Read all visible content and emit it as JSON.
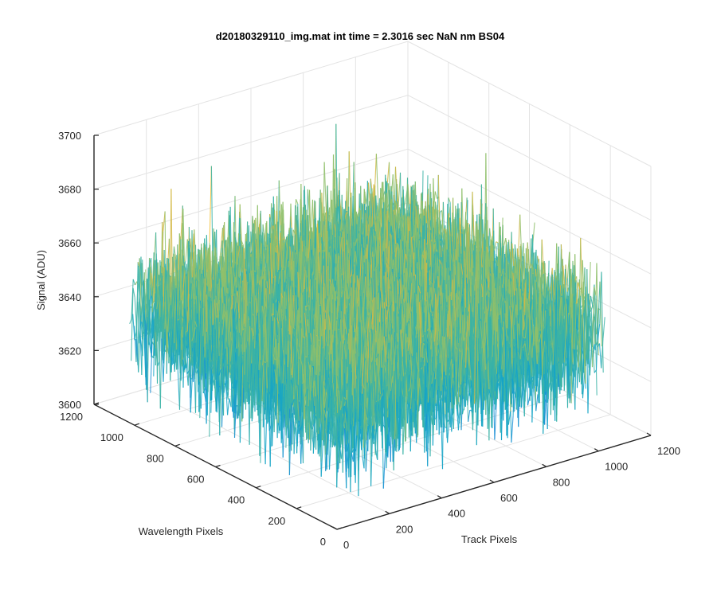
{
  "chart_data": {
    "type": "surface-3d",
    "title": "d20180329110_img.mat int time = 2.3016 sec  NaN nm BS04",
    "xlabel": "Track Pixels",
    "ylabel": "Wavelength Pixels",
    "zlabel": "Signal (ADU)",
    "xlim": [
      0,
      1200
    ],
    "ylim": [
      0,
      1200
    ],
    "zlim": [
      3600,
      3700
    ],
    "x_ticks": [
      "0",
      "200",
      "400",
      "600",
      "800",
      "1000",
      "1200"
    ],
    "y_ticks": [
      "0",
      "200",
      "400",
      "600",
      "800",
      "1000",
      "1200"
    ],
    "z_ticks": [
      "3600",
      "3620",
      "3640",
      "3660",
      "3680",
      "3700"
    ],
    "data_extent": {
      "x": [
        0,
        1024
      ],
      "y": [
        0,
        1024
      ]
    },
    "surface_mean": 3643,
    "noise_range": [
      3610,
      3690
    ],
    "colormap": [
      "#1c8fd6",
      "#16a4c7",
      "#3bb3a6",
      "#8fbf6b",
      "#d4b844",
      "#f3c13a"
    ],
    "grid": true
  }
}
